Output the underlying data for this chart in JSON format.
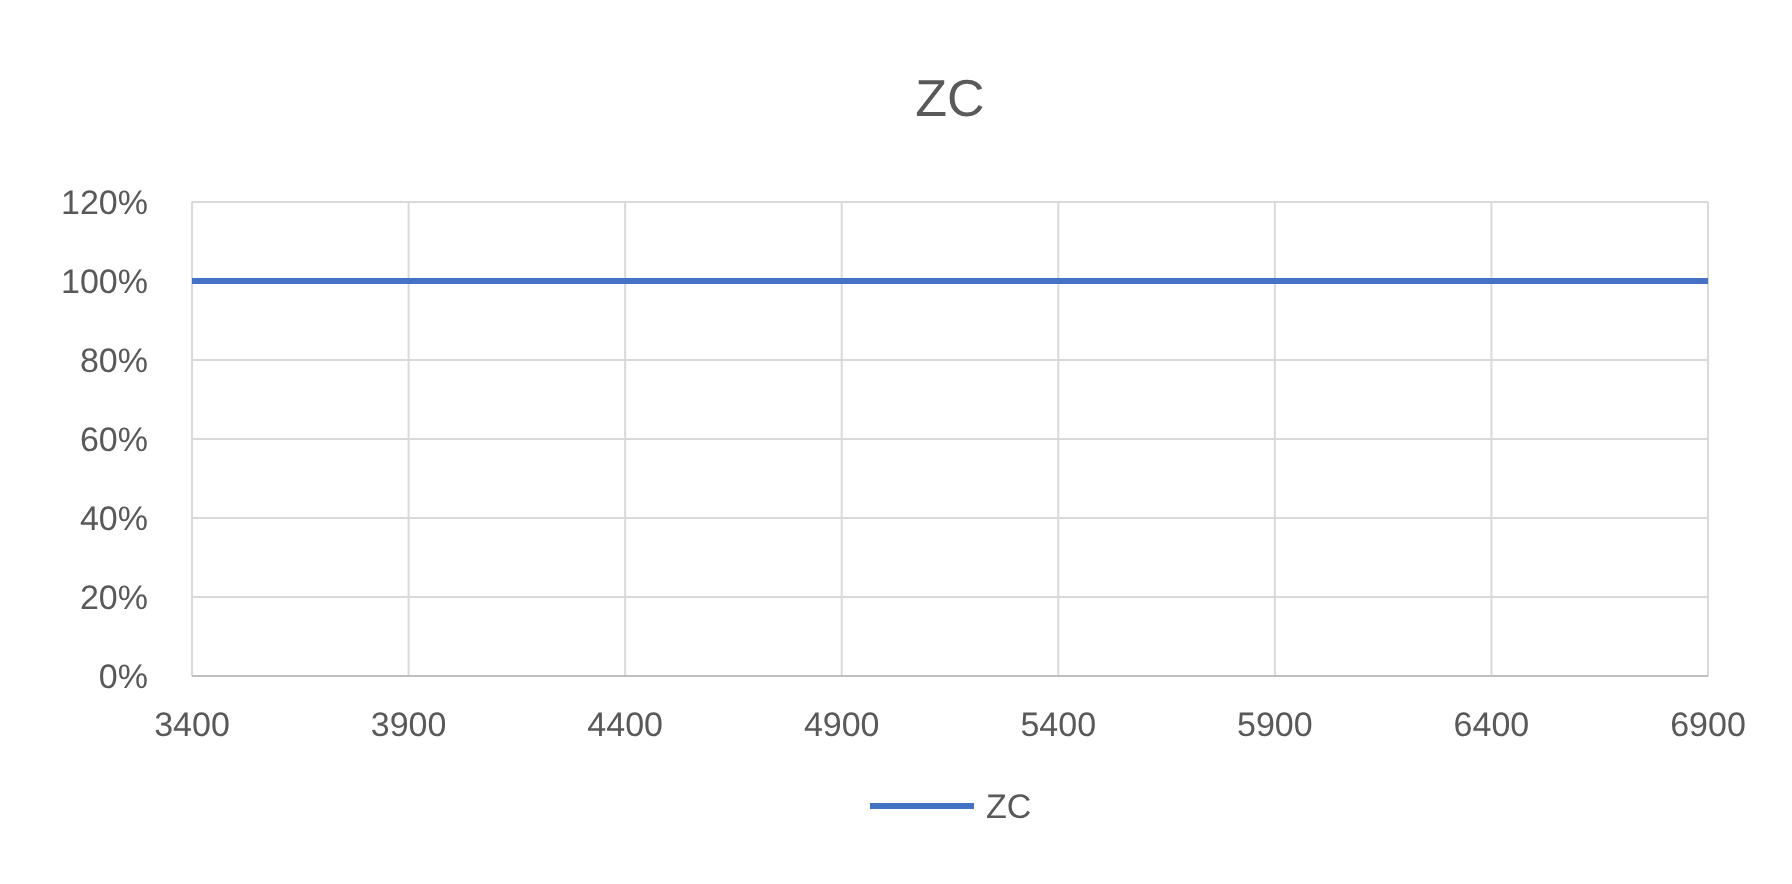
{
  "chart_data": {
    "type": "line",
    "title": "ZC",
    "x": [
      3400,
      6900
    ],
    "series": [
      {
        "name": "ZC",
        "color": "#4472c4",
        "values": [
          100,
          100
        ]
      }
    ],
    "xlim": [
      3400,
      6900
    ],
    "xticks": [
      3400,
      3900,
      4400,
      4900,
      5400,
      5900,
      6400,
      6900
    ],
    "ylim": [
      0,
      120
    ],
    "yticks": [
      {
        "value": 0,
        "label": "0%"
      },
      {
        "value": 20,
        "label": "20%"
      },
      {
        "value": 40,
        "label": "40%"
      },
      {
        "value": 60,
        "label": "60%"
      },
      {
        "value": 80,
        "label": "80%"
      },
      {
        "value": 100,
        "label": "100%"
      },
      {
        "value": 120,
        "label": "120%"
      }
    ],
    "grid": true,
    "legend": "bottom",
    "marker": "none",
    "line_style": "solid"
  }
}
